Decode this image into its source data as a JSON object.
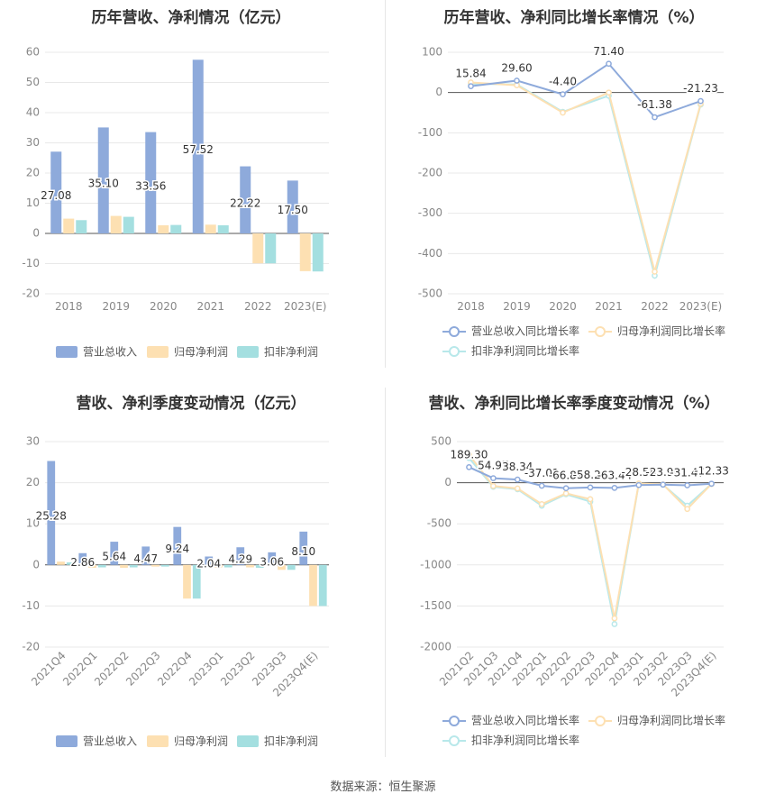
{
  "source_label": "数据来源：恒生聚源",
  "colors": {
    "revenue": "#8eaadb",
    "net_profit": "#fde0b2",
    "deducted_net_profit": "#a4dfe0",
    "revenue_line": "#8eaadb",
    "net_profit_line": "#fde0b2",
    "deducted_line": "#b8e8ea",
    "grid": "#e8e8e8",
    "axis_text": "#888888"
  },
  "chart_data": [
    {
      "type": "bar",
      "title": "历年营收、净利情况（亿元）",
      "categories": [
        "2018",
        "2019",
        "2020",
        "2021",
        "2022",
        "2023(E)"
      ],
      "ylim": [
        -20,
        60
      ],
      "yticks": [
        -20,
        -10,
        0,
        10,
        20,
        30,
        40,
        50,
        60
      ],
      "series": [
        {
          "name": "营业总收入",
          "values": [
            27.08,
            35.1,
            33.56,
            57.52,
            22.22,
            17.5
          ],
          "labeled": true
        },
        {
          "name": "归母净利润",
          "values": [
            4.9,
            5.8,
            2.7,
            2.9,
            -9.9,
            -12.5
          ],
          "labeled": false
        },
        {
          "name": "扣非净利润",
          "values": [
            4.4,
            5.5,
            2.8,
            2.7,
            -9.9,
            -12.6
          ],
          "labeled": false
        }
      ],
      "data_labels": [
        "27.08",
        "35.10",
        "33.56",
        "57.52",
        "22.22",
        "17.50"
      ],
      "legend": "bottom",
      "grid": true
    },
    {
      "type": "line",
      "title": "历年营收、净利同比增长率情况（%）",
      "categories": [
        "2018",
        "2019",
        "2020",
        "2021",
        "2022",
        "2023(E)"
      ],
      "ylim": [
        -500,
        100
      ],
      "yticks": [
        -500,
        -400,
        -300,
        -200,
        -100,
        0,
        100
      ],
      "series": [
        {
          "name": "营业总收入同比增长率",
          "values": [
            15.84,
            29.6,
            -4.4,
            71.4,
            -61.38,
            -21.23
          ],
          "labeled": true
        },
        {
          "name": "归母净利润同比增长率",
          "values": [
            25,
            18,
            -50,
            0,
            -445,
            -28
          ],
          "labeled": false
        },
        {
          "name": "扣非净利润同比增长率",
          "values": [
            22,
            20,
            -48,
            -8,
            -455,
            -30
          ],
          "labeled": false
        }
      ],
      "data_labels": [
        "15.84",
        "29.60",
        "-4.40",
        "71.40",
        "-61.38",
        "-21.23"
      ],
      "legend": "bottom",
      "grid": true
    },
    {
      "type": "bar",
      "title": "营收、净利季度变动情况（亿元）",
      "categories": [
        "2021Q4",
        "2022Q1",
        "2022Q2",
        "2022Q3",
        "2022Q4",
        "2023Q1",
        "2023Q2",
        "2023Q3",
        "2023Q4(E)"
      ],
      "ylim": [
        -20,
        30
      ],
      "yticks": [
        -20,
        -10,
        0,
        10,
        20,
        30
      ],
      "series": [
        {
          "name": "营业总收入",
          "values": [
            25.28,
            2.86,
            5.64,
            4.47,
            9.24,
            2.04,
            4.29,
            3.06,
            8.1
          ],
          "labeled": true
        },
        {
          "name": "归母净利润",
          "values": [
            0.8,
            -0.7,
            -0.7,
            -0.4,
            -8.2,
            -0.6,
            -0.6,
            -1.2,
            -10.0
          ],
          "labeled": false
        },
        {
          "name": "扣非净利润",
          "values": [
            0.6,
            -0.6,
            -0.6,
            -0.4,
            -8.2,
            -0.6,
            -0.7,
            -1.2,
            -10.0
          ],
          "labeled": false
        }
      ],
      "data_labels": [
        "25.28",
        "2.86",
        "5.64",
        "4.47",
        "9.24",
        "2.04",
        "4.29",
        "3.06",
        "8.10"
      ],
      "legend": "bottom",
      "grid": true
    },
    {
      "type": "line",
      "title": "营收、净利同比增长率季度变动情况（%）",
      "categories": [
        "2021Q2",
        "2021Q3",
        "2021Q4",
        "2022Q1",
        "2022Q2",
        "2022Q3",
        "2022Q4",
        "2023Q1",
        "2023Q2",
        "2023Q3",
        "2023Q4(E)"
      ],
      "ylim": [
        -2000,
        500
      ],
      "yticks": [
        -2000,
        -1500,
        -1000,
        -500,
        0,
        500
      ],
      "series": [
        {
          "name": "营业总收入同比增长率",
          "values": [
            189.3,
            54.97,
            38.34,
            -37.01,
            -66.81,
            -58.2,
            -63.44,
            -28.58,
            -23.96,
            -31.47,
            -12.33
          ],
          "labeled": true
        },
        {
          "name": "归母净利润同比增长率",
          "values": [
            340,
            -40,
            -70,
            -260,
            -130,
            -200,
            -1650,
            -10,
            -20,
            -320,
            -15
          ],
          "labeled": false
        },
        {
          "name": "扣非净利润同比增长率",
          "values": [
            300,
            -50,
            -80,
            -280,
            -140,
            -230,
            -1720,
            -12,
            -25,
            -280,
            -15
          ],
          "labeled": false
        }
      ],
      "data_labels": [
        "189.30",
        "54.97",
        "38.34",
        "-37.01",
        "-66.81",
        "-58.20",
        "-63.44",
        "-28.58",
        "-23.96",
        "-31.47",
        "-12.33"
      ],
      "legend": "bottom",
      "grid": true
    }
  ]
}
